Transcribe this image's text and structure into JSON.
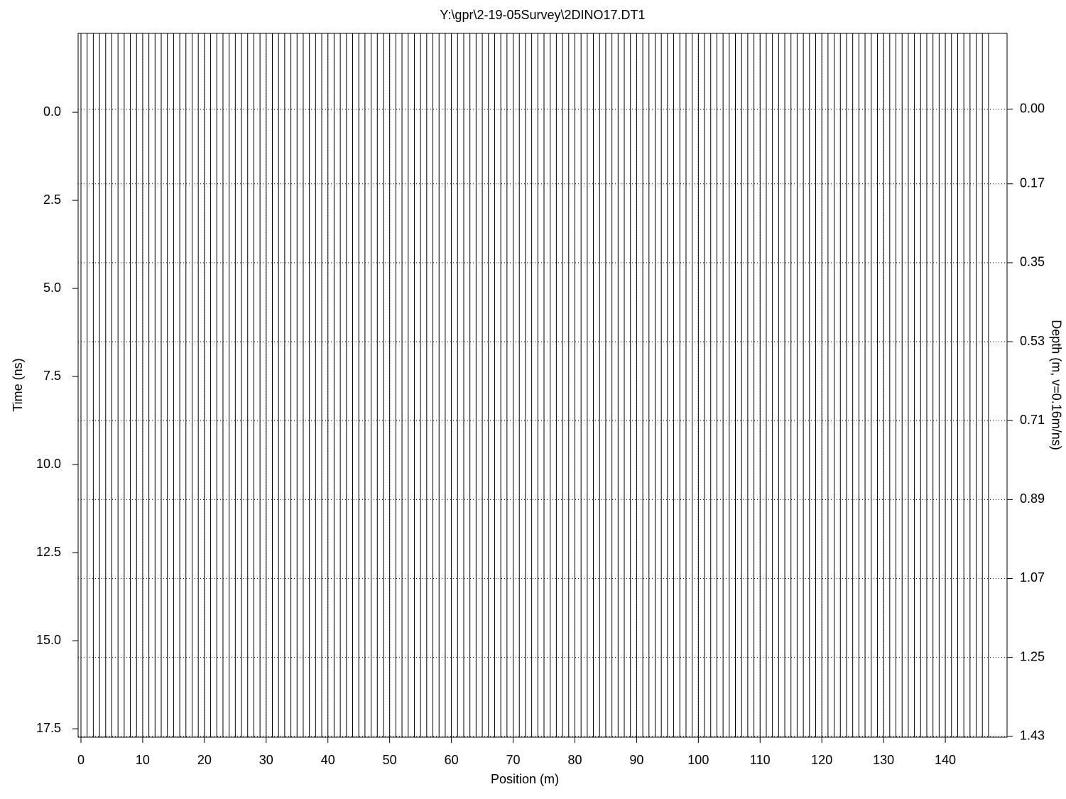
{
  "chart_data": {
    "type": "wiggle",
    "title": "Y:\\gpr\\2-19-05Survey\\2DINO17.DT1",
    "x_label": "Position (m)",
    "y_label": "Time (ns)",
    "y2_label": "Depth (m, v=0.16m/ns)",
    "xlim": [
      -0.46,
      150.0
    ],
    "xticks": [
      0,
      10,
      20,
      30,
      40,
      50,
      60,
      70,
      80,
      90,
      100,
      110,
      120,
      130,
      140
    ],
    "ylim": [
      -2.24,
      17.74
    ],
    "y_inverted": true,
    "yticks": [
      {
        "value": 0,
        "label": "0.0"
      },
      2.5,
      {
        "value": 5,
        "label": "5.0"
      },
      7.5,
      {
        "value": 10,
        "label": "10.0"
      },
      12.5,
      {
        "value": 15,
        "label": "15.0"
      },
      17.5
    ],
    "y2lim": [
      -0.173,
      1.432
    ],
    "y2ticks": [
      {
        "value": 0,
        "label": "0.00"
      },
      0.17,
      0.35,
      0.53,
      0.71,
      0.89,
      1.07,
      1.25,
      1.43
    ],
    "grid": true,
    "color": "#000000",
    "x": [
      0,
      1,
      2,
      3,
      4,
      5,
      6,
      7,
      8,
      9,
      10,
      11,
      12,
      13,
      14,
      15,
      16,
      17,
      18,
      19,
      20,
      21,
      22,
      23,
      24,
      25,
      26,
      27,
      28,
      29,
      30,
      31,
      32,
      33,
      34,
      35,
      36,
      37,
      38,
      39,
      40,
      41,
      42,
      43,
      44,
      45,
      46,
      47,
      48,
      49,
      50,
      51,
      52,
      53,
      54,
      55,
      56,
      57,
      58,
      59,
      60,
      61,
      62,
      63,
      64,
      65,
      66,
      67,
      68,
      69,
      70,
      71,
      72,
      73,
      74,
      75,
      76,
      77,
      78,
      79,
      80,
      81,
      82,
      83,
      84,
      85,
      86,
      87,
      88,
      89,
      90,
      91,
      92,
      93,
      94,
      95,
      96,
      97,
      98,
      99,
      100,
      101,
      102,
      103,
      104,
      105,
      106,
      107,
      108,
      109,
      110,
      111,
      112,
      113,
      114,
      115,
      116,
      117,
      118,
      119,
      120,
      121,
      122,
      123,
      124,
      125,
      126,
      127,
      128,
      129,
      130,
      131,
      132,
      133,
      134,
      135,
      136,
      137,
      138,
      139,
      140,
      141,
      142,
      143,
      144,
      145,
      146,
      147
    ]
  }
}
